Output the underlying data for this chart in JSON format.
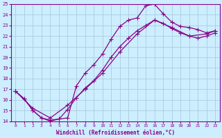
{
  "xlabel": "Windchill (Refroidissement éolien,°C)",
  "xlim": [
    -0.5,
    23.5
  ],
  "ylim": [
    14,
    25
  ],
  "xticks": [
    0,
    1,
    2,
    3,
    4,
    5,
    6,
    7,
    8,
    9,
    10,
    11,
    12,
    13,
    14,
    15,
    16,
    17,
    18,
    19,
    20,
    21,
    22,
    23
  ],
  "yticks": [
    14,
    15,
    16,
    17,
    18,
    19,
    20,
    21,
    22,
    23,
    24,
    25
  ],
  "bg_color": "#cceeff",
  "line_color": "#880088",
  "grid_color": "#aaccdd",
  "line1_x": [
    0,
    1,
    2,
    3,
    4,
    5,
    6,
    7,
    8,
    9,
    10,
    11,
    12,
    13,
    14,
    15,
    16,
    17,
    18,
    19,
    20,
    21,
    22,
    23
  ],
  "line1_y": [
    16.8,
    16.1,
    15.0,
    14.3,
    14.0,
    14.2,
    14.3,
    17.3,
    18.5,
    19.3,
    20.3,
    21.7,
    22.9,
    23.5,
    23.7,
    24.85,
    25.0,
    24.1,
    23.3,
    22.9,
    22.8,
    22.6,
    22.3,
    22.5
  ],
  "line2_x": [
    0,
    1,
    2,
    3,
    4,
    5,
    6,
    7,
    8,
    9,
    10,
    11,
    12,
    13,
    14,
    15,
    16,
    17,
    18,
    19,
    20,
    21,
    22,
    23
  ],
  "line2_y": [
    16.8,
    16.1,
    15.0,
    14.3,
    14.1,
    14.2,
    15.1,
    16.2,
    17.1,
    17.8,
    18.8,
    20.0,
    21.0,
    21.8,
    22.5,
    23.0,
    23.5,
    23.2,
    22.7,
    22.3,
    22.0,
    21.8,
    22.0,
    22.3
  ],
  "line3_x": [
    0,
    2,
    4,
    6,
    8,
    10,
    12,
    14,
    16,
    18,
    20,
    22,
    23
  ],
  "line3_y": [
    16.8,
    15.2,
    14.3,
    15.5,
    17.0,
    18.5,
    20.5,
    22.2,
    23.5,
    22.8,
    22.0,
    22.2,
    22.5
  ]
}
